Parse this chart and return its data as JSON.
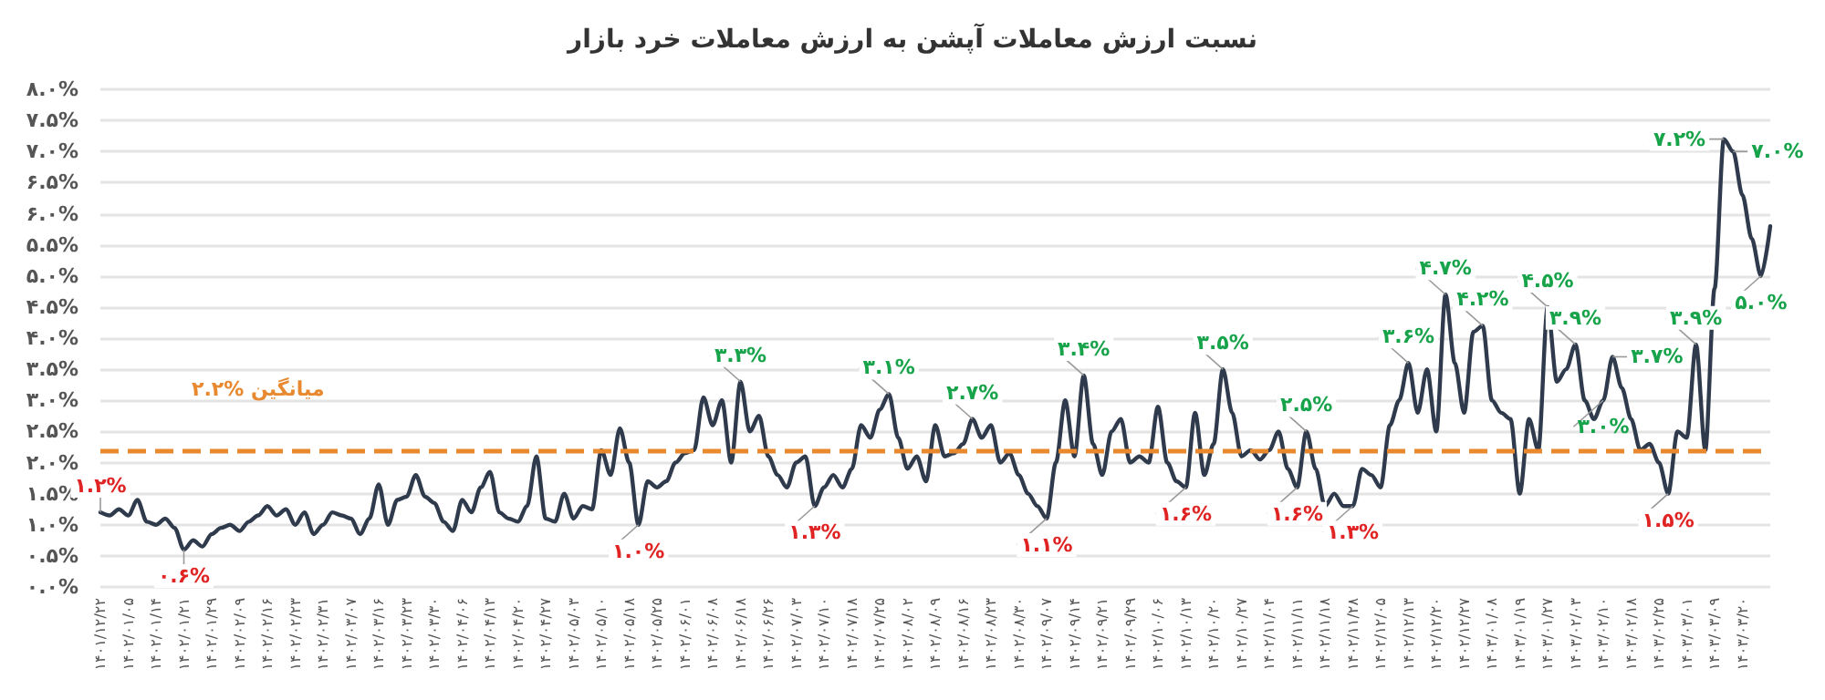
{
  "chart_data": {
    "type": "line",
    "title": "نسبت ارزش معاملات آپشن به ارزش معاملات خرد بازار",
    "categories": [
      "۱۴۰۱/۱۲/۲۲",
      null,
      null,
      "۱۴۰۲/۰۱/۰۵",
      null,
      null,
      "۱۴۰۲/۰۱/۱۴",
      null,
      null,
      "۱۴۰۲/۰۱/۲۱",
      null,
      null,
      "۱۴۰۲/۰۱/۲۹",
      null,
      null,
      "۱۴۰۲/۰۲/۰۹",
      null,
      null,
      "۱۴۰۲/۰۲/۱۶",
      null,
      null,
      "۱۴۰۲/۰۲/۲۳",
      null,
      null,
      "۱۴۰۲/۰۲/۳۱",
      null,
      null,
      "۱۴۰۲/۰۳/۰۷",
      null,
      null,
      "۱۴۰۲/۰۳/۱۶",
      null,
      null,
      "۱۴۰۲/۰۳/۲۳",
      null,
      null,
      "۱۴۰۲/۰۳/۳۰",
      null,
      null,
      "۱۴۰۲/۰۴/۰۶",
      null,
      null,
      "۱۴۰۲/۰۴/۱۳",
      null,
      null,
      "۱۴۰۲/۰۴/۲۰",
      null,
      null,
      "۱۴۰۲/۰۴/۲۷",
      null,
      null,
      "۱۴۰۲/۰۵/۰۳",
      null,
      null,
      "۱۴۰۲/۰۵/۱۰",
      null,
      null,
      "۱۴۰۲/۰۵/۱۸",
      null,
      null,
      "۱۴۰۲/۰۵/۲۵",
      null,
      null,
      "۱۴۰۲/۰۶/۰۱",
      null,
      null,
      "۱۴۰۲/۰۶/۰۸",
      null,
      null,
      "۱۴۰۲/۰۶/۱۸",
      null,
      null,
      "۱۴۰۲/۰۶/۲۶",
      null,
      null,
      "۱۴۰۲/۰۷/۰۳",
      null,
      null,
      "۱۴۰۲/۰۷/۱۰",
      null,
      null,
      "۱۴۰۲/۰۷/۱۸",
      null,
      null,
      "۱۴۰۲/۰۷/۲۵",
      null,
      null,
      "۱۴۰۲/۰۸/۰۲",
      null,
      null,
      "۱۴۰۲/۰۸/۰۹",
      null,
      null,
      "۱۴۰۲/۰۸/۱۶",
      null,
      null,
      "۱۴۰۲/۰۸/۲۳",
      null,
      null,
      "۱۴۰۲/۰۸/۳۰",
      null,
      null,
      "۱۴۰۲/۰۹/۰۷",
      null,
      null,
      "۱۴۰۲/۰۹/۱۴",
      null,
      null,
      "۱۴۰۲/۰۹/۲۱",
      null,
      null,
      "۱۴۰۲/۰۹/۲۹",
      null,
      null,
      "۱۴۰۲/۱۰/۰۶",
      null,
      null,
      "۱۴۰۲/۱۰/۱۳",
      null,
      null,
      "۱۴۰۲/۱۰/۲۰",
      null,
      null,
      "۱۴۰۲/۱۰/۲۷",
      null,
      null,
      "۱۴۰۲/۱۱/۰۴",
      null,
      null,
      "۱۴۰۲/۱۱/۱۱",
      null,
      null,
      "۱۴۰۲/۱۱/۱۸",
      null,
      null,
      "۱۴۰۲/۱۱/۲۸",
      null,
      null,
      "۱۴۰۲/۱۲/۰۵",
      null,
      null,
      "۱۴۰۲/۱۲/۱۳",
      null,
      null,
      "۱۴۰۲/۱۲/۲۰",
      null,
      null,
      "۱۴۰۲/۱۲/۲۷",
      null,
      null,
      "۱۴۰۳/۰۱/۰۸",
      null,
      null,
      "۱۴۰۳/۰۱/۱۹",
      null,
      null,
      "۱۴۰۳/۰۱/۲۷",
      null,
      null,
      "۱۴۰۳/۰۲/۰۳",
      null,
      null,
      "۱۴۰۳/۰۲/۱۰",
      null,
      null,
      "۱۴۰۳/۰۲/۱۸",
      null,
      null,
      "۱۴۰۳/۰۲/۲۵",
      null,
      null,
      "۱۴۰۳/۰۳/۰۱",
      null,
      null,
      "۱۴۰۳/۰۳/۰۹",
      null,
      null,
      "۱۴۰۳/۰۳/۲۰",
      null,
      null,
      null
    ],
    "values": [
      1.2,
      1.15,
      1.25,
      1.15,
      1.4,
      1.05,
      1.0,
      1.1,
      0.95,
      0.6,
      0.75,
      0.65,
      0.85,
      0.95,
      1.0,
      0.9,
      1.05,
      1.15,
      1.3,
      1.15,
      1.25,
      1.0,
      1.2,
      0.85,
      1.0,
      1.2,
      1.15,
      1.1,
      0.85,
      1.1,
      1.65,
      1.0,
      1.4,
      1.45,
      1.8,
      1.45,
      1.35,
      1.05,
      0.9,
      1.4,
      1.2,
      1.6,
      1.85,
      1.2,
      1.1,
      1.05,
      1.3,
      2.1,
      1.1,
      1.05,
      1.5,
      1.1,
      1.3,
      1.25,
      2.2,
      1.8,
      2.55,
      2.0,
      1.0,
      1.7,
      1.6,
      1.7,
      2.0,
      2.15,
      2.2,
      3.05,
      2.6,
      3.0,
      2.0,
      3.3,
      2.5,
      2.75,
      2.1,
      1.8,
      1.6,
      2.0,
      2.1,
      1.3,
      1.6,
      1.8,
      1.6,
      1.9,
      2.6,
      2.4,
      2.85,
      3.1,
      2.4,
      1.9,
      2.1,
      1.7,
      2.6,
      2.1,
      2.15,
      2.3,
      2.7,
      2.4,
      2.6,
      2.0,
      2.15,
      1.8,
      1.5,
      1.3,
      1.1,
      2.0,
      3.0,
      2.1,
      3.4,
      2.3,
      1.8,
      2.5,
      2.7,
      2.0,
      2.1,
      2.0,
      2.9,
      2.0,
      1.7,
      1.6,
      2.8,
      1.8,
      2.3,
      3.5,
      2.8,
      2.1,
      2.2,
      2.05,
      2.2,
      2.5,
      1.9,
      1.6,
      2.5,
      1.9,
      1.3,
      1.5,
      1.3,
      1.3,
      1.9,
      1.8,
      1.6,
      2.6,
      3.0,
      3.6,
      2.8,
      3.5,
      2.5,
      4.7,
      3.6,
      2.8,
      4.1,
      4.2,
      3.0,
      2.8,
      2.7,
      1.5,
      2.7,
      2.2,
      4.5,
      3.3,
      3.5,
      3.9,
      3.0,
      2.7,
      3.0,
      3.7,
      3.2,
      2.7,
      2.2,
      2.3,
      2.0,
      1.5,
      2.5,
      2.4,
      3.9,
      2.2,
      4.8,
      7.2,
      7.0,
      6.3,
      5.6,
      5.0,
      5.8
    ],
    "value_labels": [
      "۱.۲%",
      null,
      null,
      null,
      null,
      null,
      null,
      null,
      null,
      "۰.۶%",
      null,
      null,
      null,
      null,
      null,
      null,
      null,
      null,
      null,
      null,
      null,
      null,
      null,
      null,
      null,
      null,
      null,
      null,
      null,
      null,
      null,
      null,
      null,
      null,
      null,
      null,
      null,
      null,
      null,
      null,
      null,
      null,
      null,
      null,
      null,
      null,
      null,
      null,
      null,
      null,
      null,
      null,
      null,
      null,
      null,
      null,
      null,
      null,
      "۱.۰%",
      null,
      null,
      null,
      null,
      null,
      null,
      null,
      null,
      null,
      null,
      "۳.۳%",
      null,
      null,
      null,
      null,
      null,
      null,
      null,
      "۱.۳%",
      null,
      null,
      null,
      null,
      null,
      null,
      null,
      "۳.۱%",
      null,
      null,
      null,
      null,
      null,
      null,
      null,
      null,
      "۲.۷%",
      null,
      null,
      null,
      null,
      null,
      null,
      null,
      "۱.۱%",
      null,
      null,
      null,
      "۳.۴%",
      null,
      null,
      null,
      null,
      null,
      null,
      null,
      null,
      null,
      null,
      "۱.۶%",
      null,
      null,
      null,
      "۳.۵%",
      null,
      null,
      null,
      null,
      null,
      null,
      null,
      "۱.۶%",
      "۲.۵%",
      null,
      null,
      null,
      null,
      "۱.۳%",
      null,
      null,
      null,
      null,
      null,
      "۳.۶%",
      null,
      null,
      null,
      "۴.۷%",
      null,
      null,
      null,
      "۴.۲%",
      null,
      null,
      null,
      null,
      null,
      null,
      "۴.۵%",
      null,
      null,
      "۳.۹%",
      null,
      null,
      "۳.۰%",
      "۳.۷%",
      null,
      null,
      null,
      null,
      null,
      "۱.۵%",
      null,
      null,
      "۳.۹%",
      null,
      null,
      "۷.۲%",
      "۷.۰%",
      null,
      null,
      "۵.۰%",
      null
    ],
    "color": "#2f3b4c",
    "marker": "none",
    "ylim": [
      0,
      8
    ],
    "yticks": [
      {
        "value": 0,
        "label": "۰.۰%"
      },
      {
        "value": 0.5,
        "label": "۰.۵%"
      },
      {
        "value": 1,
        "label": "۱.۰%"
      },
      {
        "value": 1.5,
        "label": "۱.۵%"
      },
      {
        "value": 2,
        "label": "۲.۰%"
      },
      {
        "value": 2.5,
        "label": "۲.۵%"
      },
      {
        "value": 3,
        "label": "۳.۰%"
      },
      {
        "value": 3.5,
        "label": "۳.۵%"
      },
      {
        "value": 4,
        "label": "۴.۰%"
      },
      {
        "value": 4.5,
        "label": "۴.۵%"
      },
      {
        "value": 5,
        "label": "۵.۰%"
      },
      {
        "value": 5.5,
        "label": "۵.۵%"
      },
      {
        "value": 6,
        "label": "۶.۰%"
      },
      {
        "value": 6.5,
        "label": "۶.۵%"
      },
      {
        "value": 7,
        "label": "۷.۰%"
      },
      {
        "value": 7.5,
        "label": "۷.۵%"
      },
      {
        "value": 8,
        "label": "۸.۰%"
      }
    ],
    "grid": "y",
    "ref_lines": [
      {
        "axis": "y",
        "value": 2.2,
        "label": "۲.۲% میانگین",
        "color": "#e8892f",
        "line_style": "dashed"
      }
    ]
  }
}
